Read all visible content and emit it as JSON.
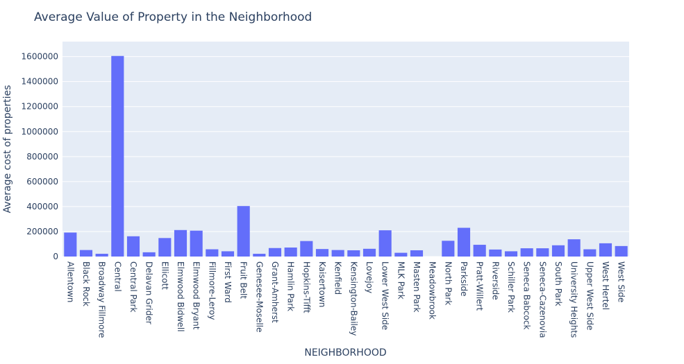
{
  "chart_data": {
    "type": "bar",
    "title": "Average Value of Property in the Neighborhood",
    "xlabel": "NEIGHBORHOOD",
    "ylabel": "Average cost of properties",
    "ylim": [
      0,
      1720000
    ],
    "yticks": [
      0,
      200000,
      400000,
      600000,
      800000,
      1000000,
      1200000,
      1400000,
      1600000
    ],
    "grid": true,
    "colors": {
      "bar": "#636efa",
      "plot_bg": "#e5ecf6",
      "grid": "#ffffff",
      "text": "#2a3f5f"
    },
    "categories": [
      "Allentown",
      "Black Rock",
      "Broadway Fillmore",
      "Central",
      "Central Park",
      "Delavan Grider",
      "Ellicott",
      "Elmwood Bidwell",
      "Elmwood Bryant",
      "Fillmore-Leroy",
      "First Ward",
      "Fruit Belt",
      "Genesee-Moselle",
      "Grant-Amherst",
      "Hamlin Park",
      "Hopkins-Tifft",
      "Kaisertown",
      "Kenfield",
      "Kensington-Bailey",
      "Lovejoy",
      "Lower West Side",
      "MLK Park",
      "Masten Park",
      "Meadowbrook",
      "North Park",
      "Parkside",
      "Pratt-Willert",
      "Riverside",
      "Schiller Park",
      "Seneca Babcock",
      "Seneca-Cazenovia",
      "South Park",
      "University Heights",
      "Upper West Side",
      "West Hertel",
      "West Side"
    ],
    "values": [
      192000,
      52000,
      22000,
      1605000,
      162000,
      34000,
      148000,
      212000,
      207000,
      58000,
      42000,
      404000,
      22000,
      68000,
      72000,
      124000,
      60000,
      52000,
      50000,
      62000,
      210000,
      30000,
      50000,
      0,
      126000,
      230000,
      94000,
      56000,
      42000,
      66000,
      66000,
      90000,
      138000,
      58000,
      106000,
      84000
    ]
  }
}
